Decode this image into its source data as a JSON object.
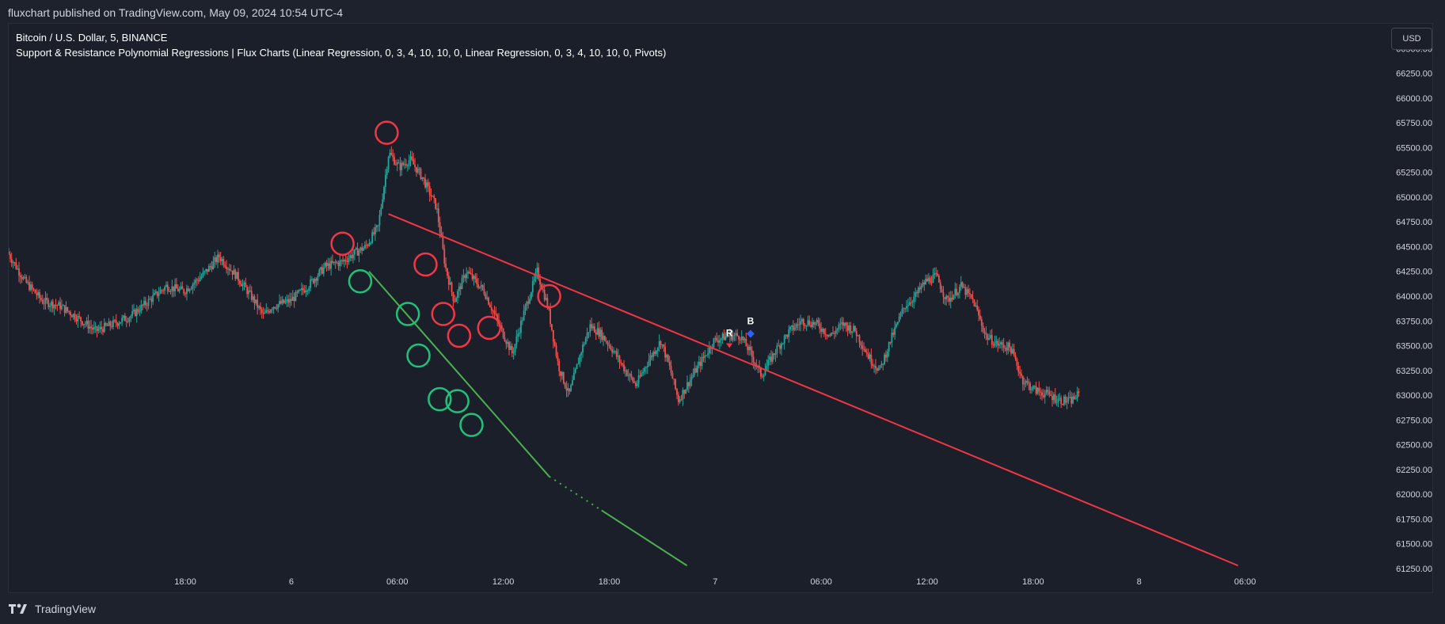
{
  "header": {
    "publisher_line": "fluxchart published on TradingView.com, May 09, 2024 10:54 UTC-4"
  },
  "legend": {
    "symbol_line": "Bitcoin / U.S. Dollar, 5, BINANCE",
    "indicator_line": "Support & Resistance Polynomial Regressions | Flux Charts (Linear Regression, 0, 3, 4, 10, 10, 0, Linear Regression, 0, 3, 4, 10, 10, 0, Pivots)"
  },
  "currency_button": {
    "label": "USD"
  },
  "footer": {
    "brand": "TradingView"
  },
  "colors": {
    "up": "#26a69a",
    "down": "#ef5350",
    "resistance": "#f23645",
    "support": "#4caf50",
    "pivot_low": "#1fc27a",
    "pivot_high": "#f23645",
    "background": "#1b1f2a",
    "blue_marker": "#2962ff"
  },
  "chart_data": {
    "type": "candlestick",
    "symbol": "Bitcoin / U.S. Dollar",
    "interval": "5",
    "exchange": "BINANCE",
    "ylim": [
      61250,
      66750
    ],
    "y_ticks": [
      66500,
      66250,
      66000,
      65750,
      65500,
      65250,
      65000,
      64750,
      64500,
      64250,
      64000,
      63750,
      63500,
      63250,
      63000,
      62750,
      62500,
      62250,
      62000,
      61750,
      61500,
      61250
    ],
    "y_tick_labels": [
      "66500.00",
      "66250.00",
      "66000.00",
      "65750.00",
      "65500.00",
      "65250.00",
      "65000.00",
      "64750.00",
      "64500.00",
      "64250.00",
      "64000.00",
      "63750.00",
      "63500.00",
      "63250.00",
      "63000.00",
      "62750.00",
      "62500.00",
      "62250.00",
      "62000.00",
      "61750.00",
      "61500.00",
      "61250.00"
    ],
    "xlim_hours": [
      8,
      86
    ],
    "x_ticks": [
      {
        "hour": 18,
        "label": "18:00"
      },
      {
        "hour": 24,
        "label": "6"
      },
      {
        "hour": 30,
        "label": "06:00"
      },
      {
        "hour": 36,
        "label": "12:00"
      },
      {
        "hour": 42,
        "label": "18:00"
      },
      {
        "hour": 48,
        "label": "7"
      },
      {
        "hour": 54,
        "label": "06:00"
      },
      {
        "hour": 60,
        "label": "12:00"
      },
      {
        "hour": 66,
        "label": "18:00"
      },
      {
        "hour": 72,
        "label": "8"
      },
      {
        "hour": 78,
        "label": "06:00"
      }
    ],
    "price_path": [
      [
        8.0,
        64450
      ],
      [
        9.0,
        64150
      ],
      [
        10.0,
        63950
      ],
      [
        11.0,
        63900
      ],
      [
        12.0,
        63780
      ],
      [
        13.0,
        63650
      ],
      [
        14.0,
        63720
      ],
      [
        15.0,
        63800
      ],
      [
        16.0,
        63950
      ],
      [
        17.0,
        64100
      ],
      [
        18.0,
        64050
      ],
      [
        19.0,
        64200
      ],
      [
        20.0,
        64400
      ],
      [
        21.0,
        64200
      ],
      [
        22.0,
        63950
      ],
      [
        22.5,
        63800
      ],
      [
        23.0,
        63900
      ],
      [
        24.0,
        63950
      ],
      [
        25.0,
        64100
      ],
      [
        26.0,
        64300
      ],
      [
        27.0,
        64350
      ],
      [
        27.8,
        64450
      ],
      [
        28.3,
        64500
      ],
      [
        29.0,
        64700
      ],
      [
        29.6,
        65450
      ],
      [
        30.2,
        65300
      ],
      [
        30.8,
        65380
      ],
      [
        31.5,
        65200
      ],
      [
        32.3,
        64900
      ],
      [
        32.8,
        64300
      ],
      [
        33.3,
        63950
      ],
      [
        34.0,
        64250
      ],
      [
        35.0,
        64050
      ],
      [
        36.0,
        63650
      ],
      [
        36.6,
        63420
      ],
      [
        37.2,
        63800
      ],
      [
        38.0,
        64250
      ],
      [
        38.6,
        63900
      ],
      [
        39.2,
        63300
      ],
      [
        39.8,
        63000
      ],
      [
        40.5,
        63450
      ],
      [
        41.0,
        63700
      ],
      [
        41.6,
        63620
      ],
      [
        42.2,
        63480
      ],
      [
        43.0,
        63250
      ],
      [
        43.6,
        63100
      ],
      [
        44.3,
        63350
      ],
      [
        45.0,
        63550
      ],
      [
        45.5,
        63280
      ],
      [
        46.0,
        62950
      ],
      [
        46.8,
        63200
      ],
      [
        47.5,
        63400
      ],
      [
        48.0,
        63550
      ],
      [
        48.8,
        63600
      ],
      [
        49.5,
        63600
      ],
      [
        50.0,
        63450
      ],
      [
        50.7,
        63200
      ],
      [
        51.5,
        63450
      ],
      [
        52.3,
        63650
      ],
      [
        53.0,
        63750
      ],
      [
        53.8,
        63720
      ],
      [
        54.6,
        63600
      ],
      [
        55.3,
        63720
      ],
      [
        56.0,
        63650
      ],
      [
        56.8,
        63380
      ],
      [
        57.4,
        63250
      ],
      [
        58.0,
        63550
      ],
      [
        58.8,
        63900
      ],
      [
        59.4,
        64000
      ],
      [
        60.0,
        64150
      ],
      [
        60.6,
        64200
      ],
      [
        61.2,
        63950
      ],
      [
        62.0,
        64100
      ],
      [
        62.7,
        63950
      ],
      [
        63.4,
        63600
      ],
      [
        64.0,
        63520
      ],
      [
        64.8,
        63480
      ],
      [
        65.5,
        63150
      ],
      [
        66.2,
        63050
      ],
      [
        67.0,
        63000
      ],
      [
        67.6,
        62950
      ],
      [
        68.2,
        62940
      ],
      [
        68.6,
        63000
      ]
    ],
    "resistance_regression": {
      "start": {
        "hour": 29.5,
        "price": 64830
      },
      "end": {
        "hour": 77.6,
        "price": 61280
      }
    },
    "support_regression": {
      "start": {
        "hour": 28.4,
        "price": 64250
      },
      "end": {
        "hour": 38.6,
        "price": 62180
      }
    },
    "support_projection": {
      "start": {
        "hour": 38.6,
        "price": 62180
      },
      "end": {
        "hour": 46.4,
        "price": 61280
      }
    },
    "pivot_highs": [
      {
        "hour": 26.9,
        "price": 64530
      },
      {
        "hour": 29.4,
        "price": 65650
      },
      {
        "hour": 31.6,
        "price": 64320
      },
      {
        "hour": 32.6,
        "price": 63820
      },
      {
        "hour": 33.5,
        "price": 63600
      },
      {
        "hour": 35.2,
        "price": 63680
      },
      {
        "hour": 38.6,
        "price": 64000
      }
    ],
    "pivot_lows": [
      {
        "hour": 27.9,
        "price": 64150
      },
      {
        "hour": 30.6,
        "price": 63820
      },
      {
        "hour": 31.2,
        "price": 63400
      },
      {
        "hour": 32.4,
        "price": 62960
      },
      {
        "hour": 33.4,
        "price": 62940
      },
      {
        "hour": 34.2,
        "price": 62700
      }
    ],
    "signals": [
      {
        "label": "R",
        "hour": 48.8,
        "price": 63500,
        "kind": "resistance-break",
        "color": "#f23645"
      },
      {
        "label": "B",
        "hour": 50.0,
        "price": 63620,
        "kind": "breakout",
        "color": "#2962ff"
      }
    ]
  }
}
